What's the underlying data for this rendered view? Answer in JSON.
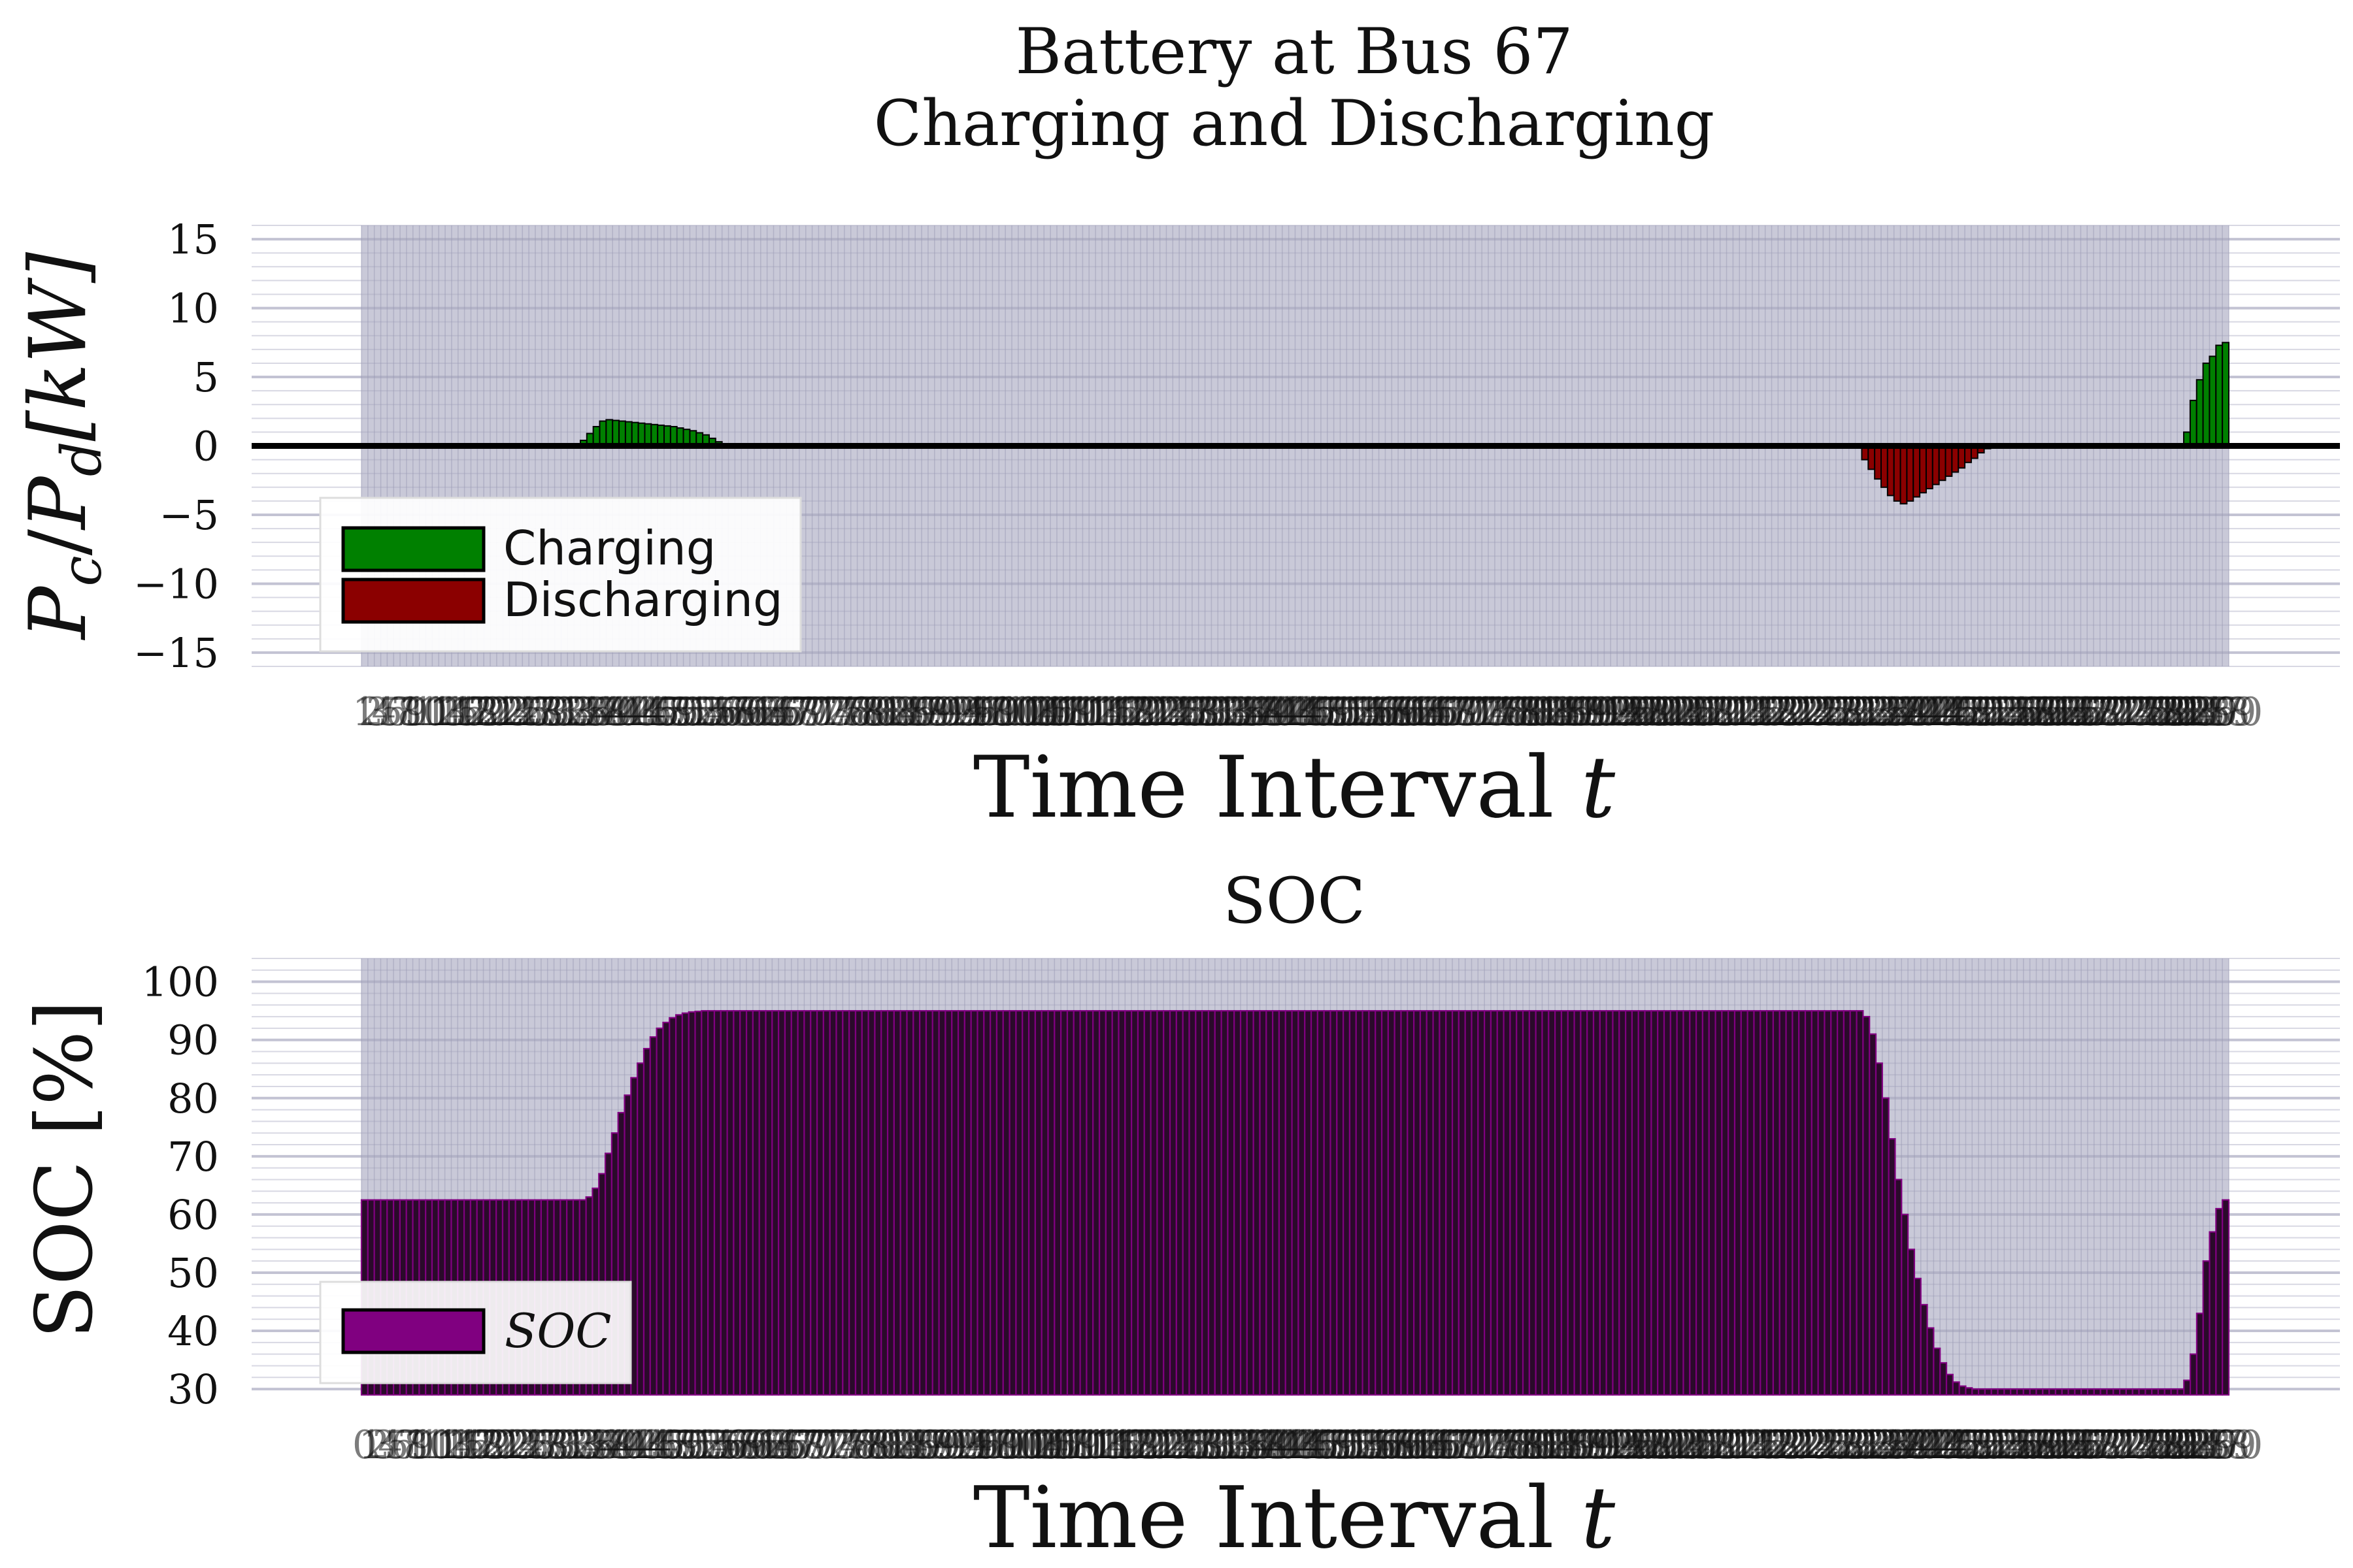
{
  "colors": {
    "charging": "#008000",
    "discharging": "#8b0000",
    "soc": "#800080",
    "plot_bg": "#c9c9d8",
    "grid": "#a9a9c0",
    "axis_zero": "#000000"
  },
  "figure": {
    "title_line1": "Battery at Bus 67",
    "title_line2": "Charging and Discharging",
    "soc_title": "SOC"
  },
  "chart_data": [
    {
      "type": "bar",
      "title": "Battery at Bus 67\nCharging and Discharging",
      "xlabel": "Time Interval t",
      "ylabel": "P_c / P_d [kW]",
      "ylim": [
        -16,
        16
      ],
      "yticks": [
        -15,
        -10,
        -5,
        0,
        5,
        10,
        15
      ],
      "grid": true,
      "legend_position": "lower-left",
      "x_range": [
        1,
        290
      ],
      "series": [
        {
          "name": "Charging",
          "color": "#008000",
          "segments": [
            {
              "x": [
                35,
                36,
                37,
                38,
                39,
                40,
                41,
                42,
                43,
                44,
                45,
                46,
                47,
                48,
                49,
                50,
                51,
                52,
                53,
                54,
                55,
                56
              ],
              "values": [
                0.4,
                0.9,
                1.4,
                1.8,
                1.9,
                1.85,
                1.8,
                1.75,
                1.7,
                1.65,
                1.6,
                1.55,
                1.5,
                1.45,
                1.4,
                1.3,
                1.2,
                1.1,
                0.95,
                0.8,
                0.55,
                0.3
              ]
            },
            {
              "x": [
                284,
                285,
                286,
                287,
                288,
                289,
                290
              ],
              "values": [
                1.0,
                3.3,
                4.8,
                6.0,
                6.5,
                7.3,
                7.5
              ]
            }
          ]
        },
        {
          "name": "Discharging",
          "color": "#8b0000",
          "segments": [
            {
              "x": [
                234,
                235,
                236,
                237,
                238,
                239,
                240,
                241,
                242,
                243,
                244,
                245,
                246,
                247,
                248,
                249,
                250,
                251,
                252,
                253
              ],
              "values": [
                -1.0,
                -1.7,
                -2.4,
                -3.0,
                -3.6,
                -4.0,
                -4.2,
                -4.0,
                -3.7,
                -3.4,
                -3.1,
                -2.8,
                -2.5,
                -2.2,
                -1.9,
                -1.6,
                -1.2,
                -0.9,
                -0.5,
                -0.2
              ]
            }
          ]
        }
      ]
    },
    {
      "type": "bar",
      "title": "SOC",
      "xlabel": "Time Interval t",
      "ylabel": "SOC [%]",
      "ylim": [
        29,
        104
      ],
      "yticks": [
        30,
        40,
        50,
        60,
        70,
        80,
        90,
        100
      ],
      "grid": true,
      "legend_position": "lower-left",
      "x_range": [
        0,
        290
      ],
      "series": [
        {
          "name": "SOC",
          "color": "#800080",
          "profile": [
            {
              "from": 0,
              "to": 34,
              "value": 62.5
            },
            {
              "x": [
                35,
                36,
                37,
                38,
                39,
                40,
                41,
                42,
                43,
                44,
                45,
                46,
                47,
                48,
                49,
                50,
                51,
                52,
                53,
                54,
                55,
                56
              ],
              "values": [
                63.0,
                64.5,
                67.0,
                70.5,
                74.0,
                77.5,
                80.5,
                83.5,
                86.0,
                88.5,
                90.5,
                92.0,
                93.0,
                93.8,
                94.3,
                94.6,
                94.8,
                94.9,
                95.0,
                95.0,
                95.0,
                95.0
              ]
            },
            {
              "from": 57,
              "to": 233,
              "value": 95.0
            },
            {
              "x": [
                234,
                235,
                236,
                237,
                238,
                239,
                240,
                241,
                242,
                243,
                244,
                245,
                246,
                247,
                248,
                249,
                250,
                251,
                252,
                253
              ],
              "values": [
                94.0,
                91.0,
                86.0,
                80.0,
                73.0,
                66.0,
                60.0,
                54.0,
                49.0,
                44.5,
                40.5,
                37.0,
                34.5,
                32.5,
                31.2,
                30.5,
                30.2,
                30.0,
                30.0,
                30.0
              ]
            },
            {
              "from": 254,
              "to": 283,
              "value": 30.0
            },
            {
              "x": [
                284,
                285,
                286,
                287,
                288,
                289,
                290
              ],
              "values": [
                31.5,
                36.0,
                43.0,
                52.0,
                57.0,
                61.0,
                62.5
              ]
            }
          ]
        }
      ]
    }
  ],
  "top_axis": {
    "ylabel_P": "P",
    "ylabel_c": "c",
    "ylabel_slash": "/",
    "ylabel_d": "d",
    "ylabel_unit": "[kW]",
    "yticks": [
      "15",
      "10",
      "5",
      "0",
      "−5",
      "−10",
      "−15"
    ],
    "xlabel_text": "Time Interval ",
    "xlabel_var": "t",
    "legend_charging": "Charging",
    "legend_discharging": "Discharging"
  },
  "bottom_axis": {
    "ylabel": "SOC [%]",
    "yticks": [
      "100",
      "90",
      "80",
      "70",
      "60",
      "50",
      "40",
      "30"
    ],
    "xlabel_text": "Time Interval ",
    "xlabel_var": "t",
    "legend_soc": "SOC"
  }
}
